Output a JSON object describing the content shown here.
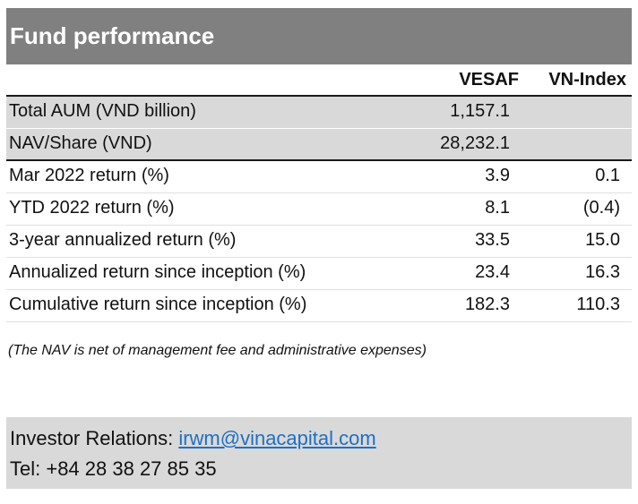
{
  "title": "Fund performance",
  "columns": [
    "VESAF",
    "VN-Index"
  ],
  "rows": [
    {
      "label": "Total AUM (VND billion)",
      "vesaf": "1,157.1",
      "vnindex": ""
    },
    {
      "label": "NAV/Share (VND)",
      "vesaf": "28,232.1",
      "vnindex": ""
    },
    {
      "label": "Mar 2022 return (%)",
      "vesaf": "3.9",
      "vnindex": "0.1"
    },
    {
      "label": "YTD 2022 return (%)",
      "vesaf": "8.1",
      "vnindex": "(0.4)"
    },
    {
      "label": "3-year annualized return (%)",
      "vesaf": "33.5",
      "vnindex": "15.0"
    },
    {
      "label": "Annualized return since inception (%)",
      "vesaf": "23.4",
      "vnindex": "16.3"
    },
    {
      "label": "Cumulative return since inception (%)",
      "vesaf": "182.3",
      "vnindex": "110.3"
    }
  ],
  "note": "(The NAV is net of management fee and administrative expenses)",
  "footer": {
    "ir_label": "Investor Relations: ",
    "ir_email": "irwm@vinacapital.com ",
    "tel": "Tel: +84 28 38 27 85 35"
  },
  "colors": {
    "title_bg": "#808080",
    "shade": "#d9d9d9",
    "link": "#1f6fc2"
  }
}
